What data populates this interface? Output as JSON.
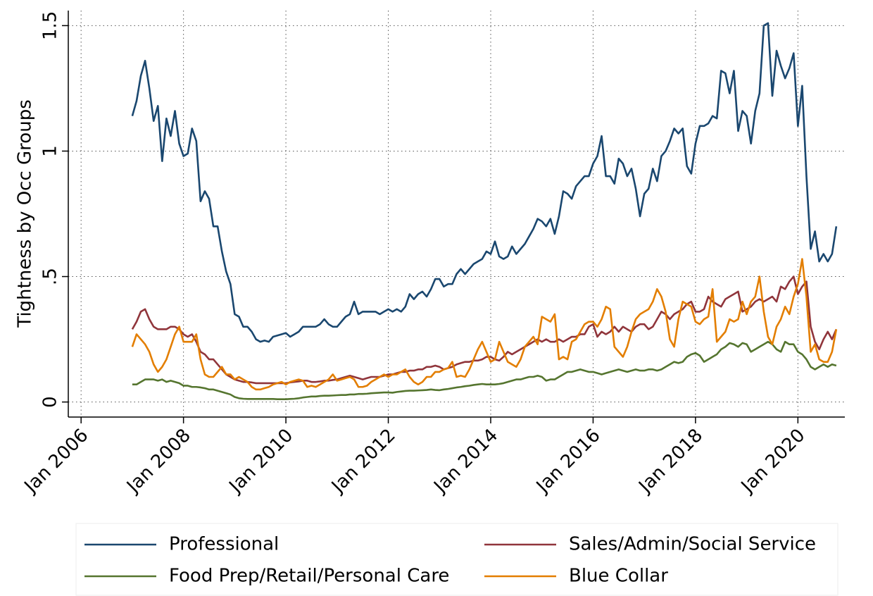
{
  "chart_data": {
    "type": "line",
    "y_label": "Tightness by Occ Groups",
    "x": [
      "2007-01",
      "2007-02",
      "2007-03",
      "2007-04",
      "2007-05",
      "2007-06",
      "2007-07",
      "2007-08",
      "2007-09",
      "2007-10",
      "2007-11",
      "2007-12",
      "2008-01",
      "2008-02",
      "2008-03",
      "2008-04",
      "2008-05",
      "2008-06",
      "2008-07",
      "2008-08",
      "2008-09",
      "2008-10",
      "2008-11",
      "2008-12",
      "2009-01",
      "2009-02",
      "2009-03",
      "2009-04",
      "2009-05",
      "2009-06",
      "2009-07",
      "2009-08",
      "2009-09",
      "2009-10",
      "2009-11",
      "2009-12",
      "2010-01",
      "2010-02",
      "2010-03",
      "2010-04",
      "2010-05",
      "2010-06",
      "2010-07",
      "2010-08",
      "2010-09",
      "2010-10",
      "2010-11",
      "2010-12",
      "2011-01",
      "2011-02",
      "2011-03",
      "2011-04",
      "2011-05",
      "2011-06",
      "2011-07",
      "2011-08",
      "2011-09",
      "2011-10",
      "2011-11",
      "2011-12",
      "2012-01",
      "2012-02",
      "2012-03",
      "2012-04",
      "2012-05",
      "2012-06",
      "2012-07",
      "2012-08",
      "2012-09",
      "2012-10",
      "2012-11",
      "2012-12",
      "2013-01",
      "2013-02",
      "2013-03",
      "2013-04",
      "2013-05",
      "2013-06",
      "2013-07",
      "2013-08",
      "2013-09",
      "2013-10",
      "2013-11",
      "2013-12",
      "2014-01",
      "2014-02",
      "2014-03",
      "2014-04",
      "2014-05",
      "2014-06",
      "2014-07",
      "2014-08",
      "2014-09",
      "2014-10",
      "2014-11",
      "2014-12",
      "2015-01",
      "2015-02",
      "2015-03",
      "2015-04",
      "2015-05",
      "2015-06",
      "2015-07",
      "2015-08",
      "2015-09",
      "2015-10",
      "2015-11",
      "2015-12",
      "2016-01",
      "2016-02",
      "2016-03",
      "2016-04",
      "2016-05",
      "2016-06",
      "2016-07",
      "2016-08",
      "2016-09",
      "2016-10",
      "2016-11",
      "2016-12",
      "2017-01",
      "2017-02",
      "2017-03",
      "2017-04",
      "2017-05",
      "2017-06",
      "2017-07",
      "2017-08",
      "2017-09",
      "2017-10",
      "2017-11",
      "2017-12",
      "2018-01",
      "2018-02",
      "2018-03",
      "2018-04",
      "2018-05",
      "2018-06",
      "2018-07",
      "2018-08",
      "2018-09",
      "2018-10",
      "2018-11",
      "2018-12",
      "2019-01",
      "2019-02",
      "2019-03",
      "2019-04",
      "2019-05",
      "2019-06",
      "2019-07",
      "2019-08",
      "2019-09",
      "2019-10",
      "2019-11",
      "2019-12",
      "2020-01",
      "2020-02",
      "2020-03",
      "2020-04",
      "2020-05",
      "2020-06",
      "2020-07",
      "2020-08",
      "2020-09",
      "2020-10"
    ],
    "series": [
      {
        "name": "Professional",
        "color": "#1a476f",
        "values": [
          1.14,
          1.2,
          1.3,
          1.36,
          1.25,
          1.12,
          1.18,
          0.96,
          1.13,
          1.06,
          1.16,
          1.03,
          0.98,
          0.99,
          1.09,
          1.04,
          0.8,
          0.84,
          0.81,
          0.7,
          0.7,
          0.6,
          0.52,
          0.47,
          0.35,
          0.34,
          0.3,
          0.3,
          0.28,
          0.25,
          0.24,
          0.245,
          0.24,
          0.26,
          0.265,
          0.27,
          0.275,
          0.26,
          0.27,
          0.28,
          0.3,
          0.3,
          0.3,
          0.3,
          0.31,
          0.33,
          0.31,
          0.3,
          0.3,
          0.32,
          0.34,
          0.35,
          0.4,
          0.35,
          0.36,
          0.36,
          0.36,
          0.36,
          0.35,
          0.36,
          0.37,
          0.36,
          0.37,
          0.36,
          0.38,
          0.43,
          0.41,
          0.43,
          0.44,
          0.42,
          0.45,
          0.49,
          0.49,
          0.46,
          0.47,
          0.47,
          0.51,
          0.53,
          0.51,
          0.53,
          0.55,
          0.56,
          0.57,
          0.6,
          0.59,
          0.64,
          0.58,
          0.57,
          0.58,
          0.62,
          0.59,
          0.61,
          0.63,
          0.66,
          0.69,
          0.73,
          0.72,
          0.7,
          0.73,
          0.67,
          0.74,
          0.84,
          0.83,
          0.81,
          0.86,
          0.88,
          0.9,
          0.9,
          0.95,
          0.98,
          1.06,
          0.9,
          0.9,
          0.87,
          0.97,
          0.95,
          0.9,
          0.93,
          0.85,
          0.74,
          0.83,
          0.85,
          0.93,
          0.88,
          0.98,
          1.0,
          1.04,
          1.09,
          1.07,
          1.09,
          0.94,
          0.91,
          1.03,
          1.1,
          1.1,
          1.11,
          1.14,
          1.13,
          1.32,
          1.31,
          1.23,
          1.32,
          1.08,
          1.16,
          1.14,
          1.03,
          1.16,
          1.23,
          1.5,
          1.51,
          1.22,
          1.4,
          1.34,
          1.29,
          1.33,
          1.39,
          1.1,
          1.26,
          0.9,
          0.61,
          0.68,
          0.56,
          0.59,
          0.56,
          0.59,
          0.7
        ]
      },
      {
        "name": "Sales/Admin/Social Service",
        "color": "#90353b",
        "values": [
          0.29,
          0.32,
          0.36,
          0.37,
          0.33,
          0.3,
          0.29,
          0.29,
          0.29,
          0.3,
          0.3,
          0.29,
          0.27,
          0.26,
          0.27,
          0.24,
          0.2,
          0.19,
          0.17,
          0.17,
          0.15,
          0.13,
          0.11,
          0.1,
          0.09,
          0.085,
          0.08,
          0.08,
          0.078,
          0.075,
          0.075,
          0.075,
          0.075,
          0.075,
          0.075,
          0.075,
          0.075,
          0.078,
          0.08,
          0.082,
          0.085,
          0.085,
          0.08,
          0.08,
          0.082,
          0.085,
          0.085,
          0.088,
          0.09,
          0.095,
          0.1,
          0.105,
          0.1,
          0.095,
          0.09,
          0.095,
          0.1,
          0.1,
          0.1,
          0.105,
          0.11,
          0.11,
          0.115,
          0.12,
          0.12,
          0.125,
          0.125,
          0.13,
          0.13,
          0.14,
          0.14,
          0.145,
          0.14,
          0.13,
          0.135,
          0.14,
          0.15,
          0.155,
          0.16,
          0.16,
          0.165,
          0.165,
          0.17,
          0.18,
          0.18,
          0.17,
          0.165,
          0.18,
          0.2,
          0.19,
          0.2,
          0.21,
          0.22,
          0.23,
          0.24,
          0.25,
          0.24,
          0.25,
          0.24,
          0.24,
          0.25,
          0.24,
          0.25,
          0.26,
          0.26,
          0.27,
          0.27,
          0.3,
          0.31,
          0.26,
          0.28,
          0.27,
          0.28,
          0.3,
          0.28,
          0.3,
          0.29,
          0.28,
          0.3,
          0.31,
          0.31,
          0.29,
          0.3,
          0.33,
          0.36,
          0.35,
          0.33,
          0.35,
          0.36,
          0.37,
          0.39,
          0.4,
          0.36,
          0.36,
          0.37,
          0.42,
          0.4,
          0.39,
          0.38,
          0.41,
          0.42,
          0.43,
          0.44,
          0.36,
          0.37,
          0.38,
          0.4,
          0.41,
          0.4,
          0.41,
          0.42,
          0.4,
          0.46,
          0.45,
          0.48,
          0.5,
          0.43,
          0.46,
          0.48,
          0.3,
          0.24,
          0.21,
          0.25,
          0.28,
          0.25,
          0.29
        ]
      },
      {
        "name": "Food Prep/Retail/Personal Care",
        "color": "#55752f",
        "values": [
          0.07,
          0.07,
          0.08,
          0.09,
          0.09,
          0.09,
          0.085,
          0.09,
          0.08,
          0.085,
          0.08,
          0.075,
          0.065,
          0.065,
          0.06,
          0.06,
          0.058,
          0.055,
          0.05,
          0.05,
          0.045,
          0.04,
          0.035,
          0.03,
          0.02,
          0.015,
          0.013,
          0.012,
          0.012,
          0.012,
          0.012,
          0.012,
          0.012,
          0.012,
          0.011,
          0.011,
          0.011,
          0.012,
          0.013,
          0.015,
          0.018,
          0.02,
          0.022,
          0.022,
          0.024,
          0.025,
          0.025,
          0.026,
          0.027,
          0.028,
          0.028,
          0.03,
          0.03,
          0.032,
          0.032,
          0.033,
          0.035,
          0.036,
          0.037,
          0.038,
          0.038,
          0.037,
          0.04,
          0.042,
          0.044,
          0.045,
          0.045,
          0.046,
          0.047,
          0.048,
          0.05,
          0.048,
          0.047,
          0.05,
          0.052,
          0.055,
          0.058,
          0.06,
          0.063,
          0.065,
          0.068,
          0.07,
          0.072,
          0.07,
          0.07,
          0.07,
          0.072,
          0.075,
          0.08,
          0.085,
          0.09,
          0.09,
          0.095,
          0.1,
          0.1,
          0.105,
          0.1,
          0.085,
          0.09,
          0.09,
          0.1,
          0.11,
          0.12,
          0.12,
          0.125,
          0.13,
          0.125,
          0.12,
          0.12,
          0.115,
          0.11,
          0.115,
          0.12,
          0.125,
          0.13,
          0.125,
          0.12,
          0.125,
          0.13,
          0.125,
          0.125,
          0.13,
          0.13,
          0.125,
          0.13,
          0.14,
          0.15,
          0.16,
          0.155,
          0.16,
          0.18,
          0.19,
          0.195,
          0.185,
          0.16,
          0.17,
          0.18,
          0.19,
          0.21,
          0.22,
          0.235,
          0.23,
          0.22,
          0.235,
          0.23,
          0.2,
          0.21,
          0.22,
          0.23,
          0.24,
          0.23,
          0.21,
          0.2,
          0.24,
          0.23,
          0.23,
          0.2,
          0.19,
          0.17,
          0.14,
          0.13,
          0.14,
          0.15,
          0.14,
          0.15,
          0.145
        ]
      },
      {
        "name": "Blue Collar",
        "color": "#e37e00",
        "values": [
          0.22,
          0.27,
          0.25,
          0.23,
          0.2,
          0.15,
          0.12,
          0.14,
          0.17,
          0.22,
          0.27,
          0.3,
          0.24,
          0.24,
          0.24,
          0.27,
          0.17,
          0.11,
          0.1,
          0.1,
          0.12,
          0.14,
          0.11,
          0.11,
          0.09,
          0.1,
          0.09,
          0.08,
          0.06,
          0.05,
          0.05,
          0.055,
          0.06,
          0.07,
          0.075,
          0.08,
          0.07,
          0.08,
          0.085,
          0.09,
          0.085,
          0.06,
          0.065,
          0.06,
          0.07,
          0.08,
          0.09,
          0.11,
          0.085,
          0.09,
          0.095,
          0.1,
          0.09,
          0.06,
          0.06,
          0.065,
          0.08,
          0.09,
          0.1,
          0.11,
          0.1,
          0.11,
          0.11,
          0.12,
          0.13,
          0.1,
          0.08,
          0.07,
          0.08,
          0.1,
          0.1,
          0.12,
          0.12,
          0.13,
          0.135,
          0.16,
          0.1,
          0.105,
          0.1,
          0.13,
          0.17,
          0.21,
          0.24,
          0.2,
          0.16,
          0.17,
          0.24,
          0.2,
          0.16,
          0.15,
          0.14,
          0.17,
          0.22,
          0.24,
          0.26,
          0.23,
          0.34,
          0.33,
          0.32,
          0.35,
          0.17,
          0.18,
          0.17,
          0.24,
          0.25,
          0.28,
          0.31,
          0.32,
          0.32,
          0.3,
          0.33,
          0.38,
          0.37,
          0.22,
          0.2,
          0.18,
          0.22,
          0.28,
          0.33,
          0.35,
          0.36,
          0.37,
          0.4,
          0.45,
          0.42,
          0.36,
          0.25,
          0.22,
          0.33,
          0.4,
          0.39,
          0.38,
          0.32,
          0.31,
          0.33,
          0.34,
          0.45,
          0.24,
          0.26,
          0.28,
          0.33,
          0.32,
          0.33,
          0.4,
          0.35,
          0.4,
          0.42,
          0.5,
          0.36,
          0.26,
          0.23,
          0.3,
          0.33,
          0.38,
          0.35,
          0.42,
          0.47,
          0.57,
          0.42,
          0.2,
          0.23,
          0.17,
          0.16,
          0.16,
          0.2,
          0.29
        ]
      }
    ],
    "xlim": [
      "2005-10",
      "2020-12"
    ],
    "xticks": [
      {
        "value": "2006-01",
        "label": "Jan 2006"
      },
      {
        "value": "2008-01",
        "label": "Jan 2008"
      },
      {
        "value": "2010-01",
        "label": "Jan 2010"
      },
      {
        "value": "2012-01",
        "label": "Jan 2012"
      },
      {
        "value": "2014-01",
        "label": "Jan 2014"
      },
      {
        "value": "2016-01",
        "label": "Jan 2016"
      },
      {
        "value": "2018-01",
        "label": "Jan 2018"
      },
      {
        "value": "2020-01",
        "label": "Jan 2020"
      }
    ],
    "ylim": [
      -0.06,
      1.56
    ],
    "yticks": [
      0,
      {
        "value": 0.5,
        "label": ".5"
      },
      1,
      1.5
    ],
    "grid": true,
    "legend": "bottom"
  }
}
